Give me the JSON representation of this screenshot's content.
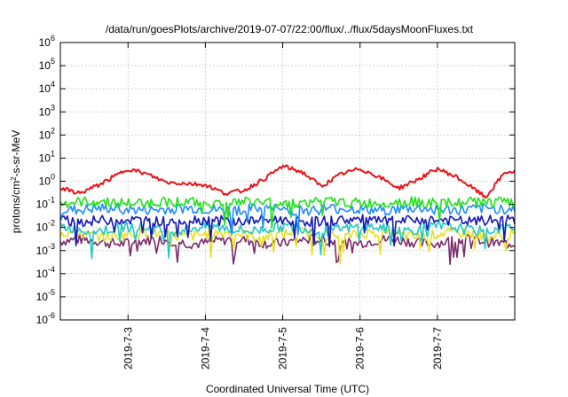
{
  "chart_data": {
    "type": "line",
    "title": "/data/run/goesPlots/archive/2019-07-07/22:00/flux/../flux/5daysMoonFluxes.txt",
    "xlabel": "Coordinated Universal Time (UTC)",
    "ylabel": "protons/cm2-s-sr-MeV",
    "yscale": "log",
    "ylim_exponent": [
      -6,
      6
    ],
    "y_tick_exponents": [
      -6,
      -5,
      -4,
      -3,
      -2,
      -1,
      0,
      1,
      2,
      3,
      4,
      5,
      6
    ],
    "x_range_days": [
      "2019-07-02",
      "2019-07-08"
    ],
    "xlim": [
      "2019-07-02 03:00",
      "2019-07-08 00:00"
    ],
    "x_tick_labels": [
      "2019-7-3",
      "2019-7-4",
      "2019-7-5",
      "2019-7-6",
      "2019-7-7"
    ],
    "grid": true,
    "series": [
      {
        "color": "#e8141a",
        "points": [
          [
            "2019-07-02 03:00",
            0.5
          ],
          [
            "2019-07-02 09:00",
            0.3
          ],
          [
            "2019-07-02 15:00",
            0.7
          ],
          [
            "2019-07-02 21:00",
            2.0
          ],
          [
            "2019-07-03 00:00",
            3.5
          ],
          [
            "2019-07-03 06:00",
            2.0
          ],
          [
            "2019-07-03 12:00",
            0.9
          ],
          [
            "2019-07-03 18:00",
            0.8
          ],
          [
            "2019-07-04 00:00",
            0.7
          ],
          [
            "2019-07-04 06:00",
            0.3
          ],
          [
            "2019-07-04 12:00",
            0.4
          ],
          [
            "2019-07-04 18:00",
            1.2
          ],
          [
            "2019-07-05 00:00",
            4.5
          ],
          [
            "2019-07-05 06:00",
            2.5
          ],
          [
            "2019-07-05 12:00",
            0.6
          ],
          [
            "2019-07-05 18:00",
            2.0
          ],
          [
            "2019-07-06 00:00",
            3.5
          ],
          [
            "2019-07-06 06:00",
            1.5
          ],
          [
            "2019-07-06 12:00",
            0.5
          ],
          [
            "2019-07-06 18:00",
            1.2
          ],
          [
            "2019-07-07 00:00",
            3.5
          ],
          [
            "2019-07-07 06:00",
            1.5
          ],
          [
            "2019-07-07 12:00",
            0.4
          ],
          [
            "2019-07-07 15:00",
            0.2
          ],
          [
            "2019-07-07 21:00",
            2.5
          ],
          [
            "2019-07-08 00:00",
            2.5
          ]
        ]
      },
      {
        "color": "#22e01a",
        "base": 0.12
      },
      {
        "color": "#1e8cff",
        "base": 0.06
      },
      {
        "color": "#1515b8",
        "base": 0.02
      },
      {
        "color": "#20c8c0",
        "base": 0.009
      },
      {
        "color": "#e8e020",
        "base": 0.005
      },
      {
        "color": "#7a2a6a",
        "base": 0.0025
      }
    ]
  }
}
